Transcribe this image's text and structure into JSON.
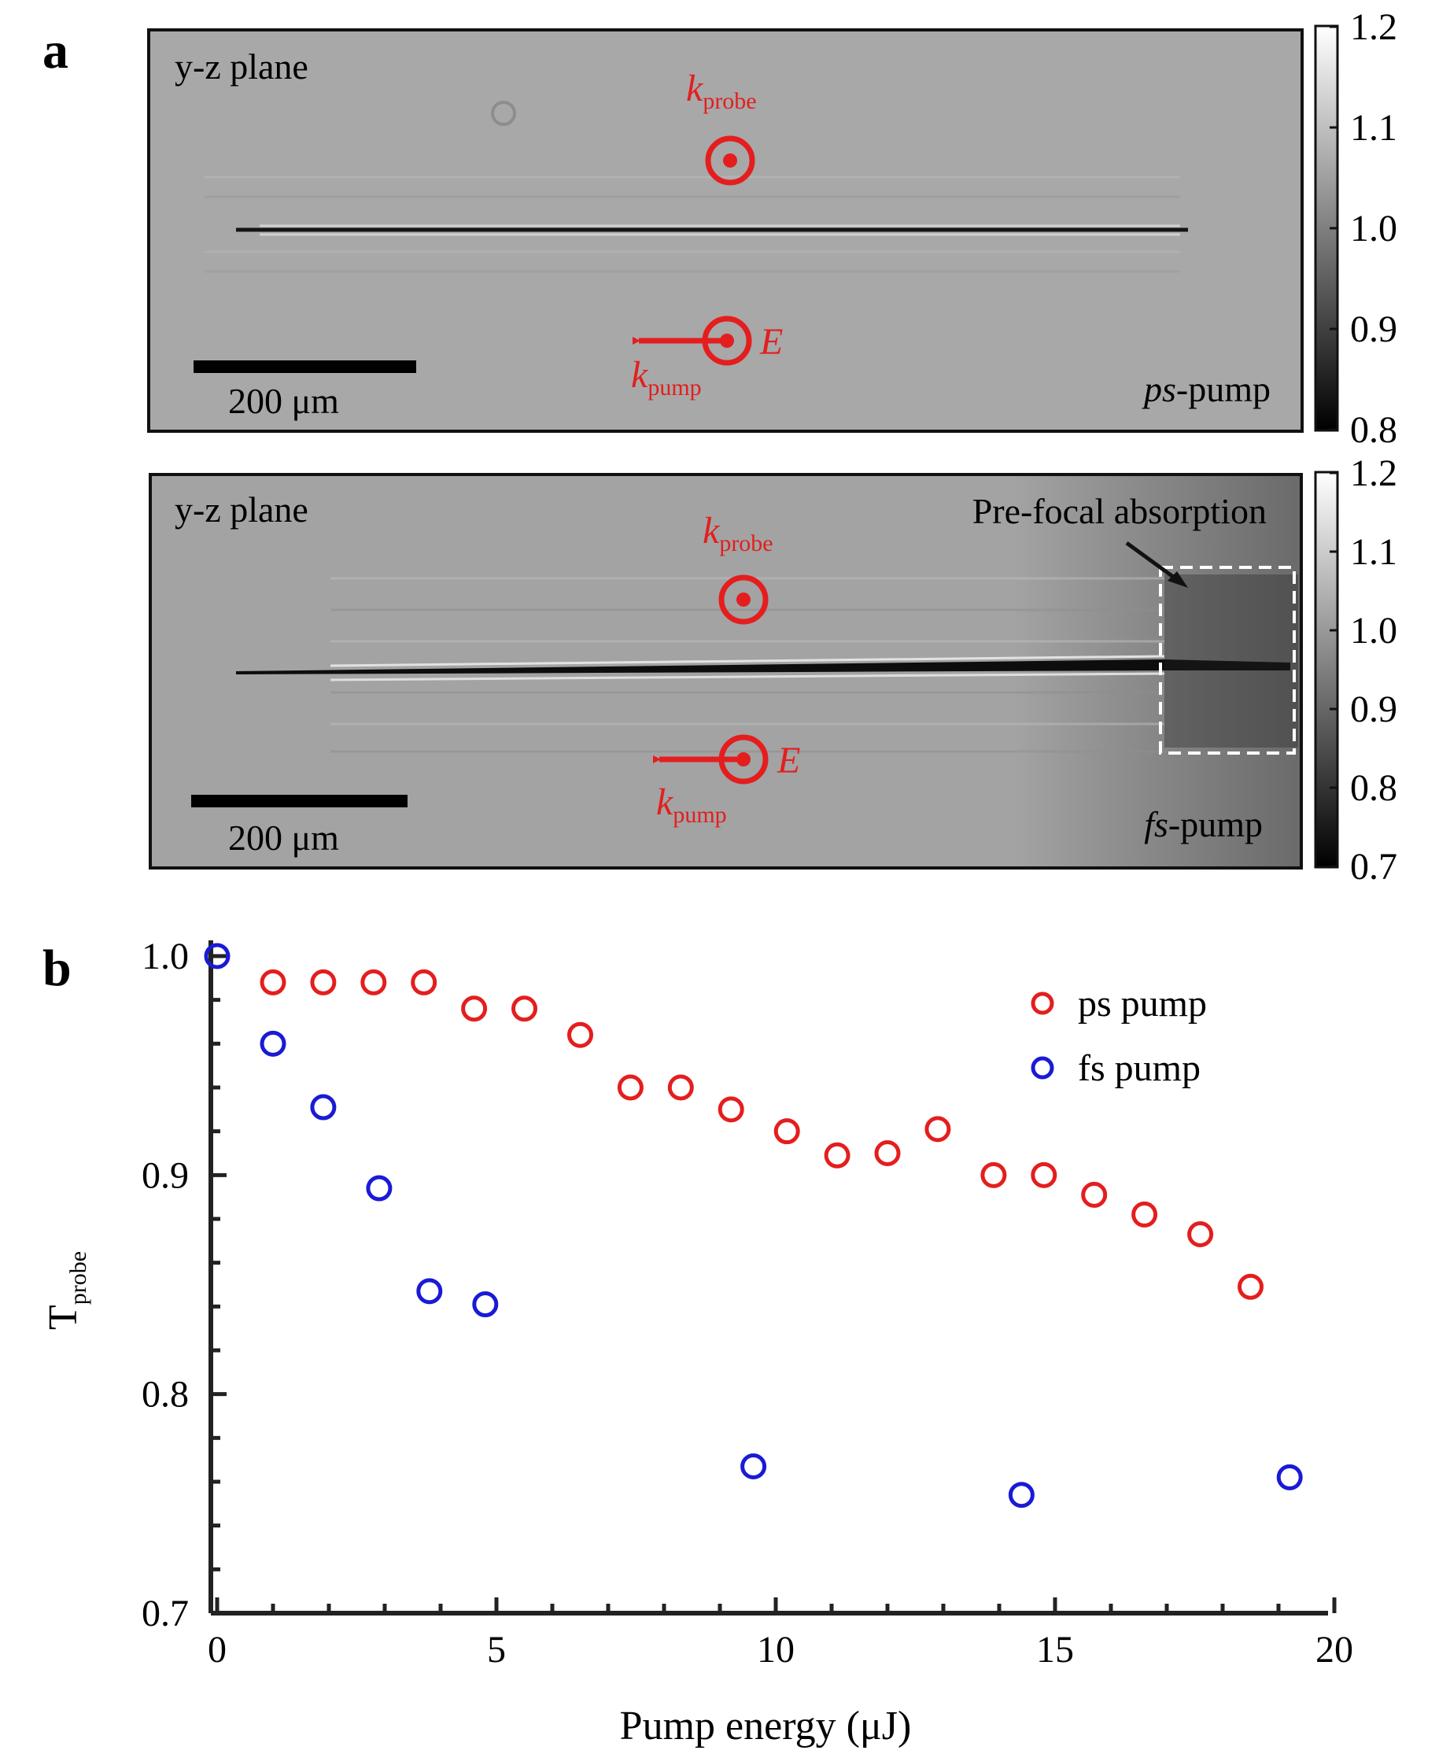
{
  "panel_a": {
    "label": "a",
    "top": {
      "plane_label": "y-z plane",
      "k_probe": {
        "base": "k",
        "sub": "probe"
      },
      "k_pump": {
        "base": "k",
        "sub": "pump"
      },
      "field_label": "E",
      "scale_bar_label": "200 μm",
      "pump_prefix": "ps",
      "pump_suffix": "-pump",
      "colorbar_ticks": [
        "1.2",
        "1.1",
        "1.0",
        "0.9",
        "0.8"
      ]
    },
    "bottom": {
      "plane_label": "y-z plane",
      "k_probe": {
        "base": "k",
        "sub": "probe"
      },
      "k_pump": {
        "base": "k",
        "sub": "pump"
      },
      "field_label": "E",
      "scale_bar_label": "200 μm",
      "pump_prefix": "fs",
      "pump_suffix": "-pump",
      "annotation": "Pre-focal absorption",
      "colorbar_ticks": [
        "1.2",
        "1.1",
        "1.0",
        "0.9",
        "0.8",
        "0.7"
      ]
    },
    "colors": {
      "annotation_red": "#e41e1e",
      "image_gray": "#a6a6a6",
      "frame": "#111111"
    }
  },
  "panel_b": {
    "label": "b",
    "chart_data": {
      "type": "scatter",
      "xlabel": "Pump energy (μJ)",
      "ylabel": {
        "base": "T",
        "sub": "probe"
      },
      "xlim": [
        0,
        20
      ],
      "ylim": [
        0.7,
        1.0
      ],
      "xticks": [
        0,
        5,
        10,
        15,
        20
      ],
      "yticks": [
        0.7,
        0.8,
        0.9,
        1.0
      ],
      "ytick_labels": [
        "0.7",
        "0.8",
        "0.9",
        "1.0"
      ],
      "legend_position": "top-right",
      "series": [
        {
          "name": "ps pump",
          "color": "#e41e1e",
          "points": [
            [
              1.0,
              0.988
            ],
            [
              1.9,
              0.988
            ],
            [
              2.8,
              0.988
            ],
            [
              3.7,
              0.988
            ],
            [
              4.6,
              0.976
            ],
            [
              5.5,
              0.976
            ],
            [
              6.5,
              0.964
            ],
            [
              7.4,
              0.94
            ],
            [
              8.3,
              0.94
            ],
            [
              9.2,
              0.93
            ],
            [
              10.2,
              0.92
            ],
            [
              11.1,
              0.909
            ],
            [
              12.0,
              0.91
            ],
            [
              12.9,
              0.921
            ],
            [
              13.9,
              0.9
            ],
            [
              14.8,
              0.9
            ],
            [
              15.7,
              0.891
            ],
            [
              16.6,
              0.882
            ],
            [
              17.6,
              0.873
            ],
            [
              18.5,
              0.849
            ]
          ]
        },
        {
          "name": "fs pump",
          "color": "#1a1ad6",
          "points": [
            [
              0.0,
              1.0
            ],
            [
              1.0,
              0.96
            ],
            [
              1.9,
              0.931
            ],
            [
              2.9,
              0.894
            ],
            [
              3.8,
              0.847
            ],
            [
              4.8,
              0.841
            ],
            [
              9.6,
              0.767
            ],
            [
              14.4,
              0.754
            ],
            [
              19.2,
              0.762
            ]
          ]
        }
      ]
    }
  }
}
